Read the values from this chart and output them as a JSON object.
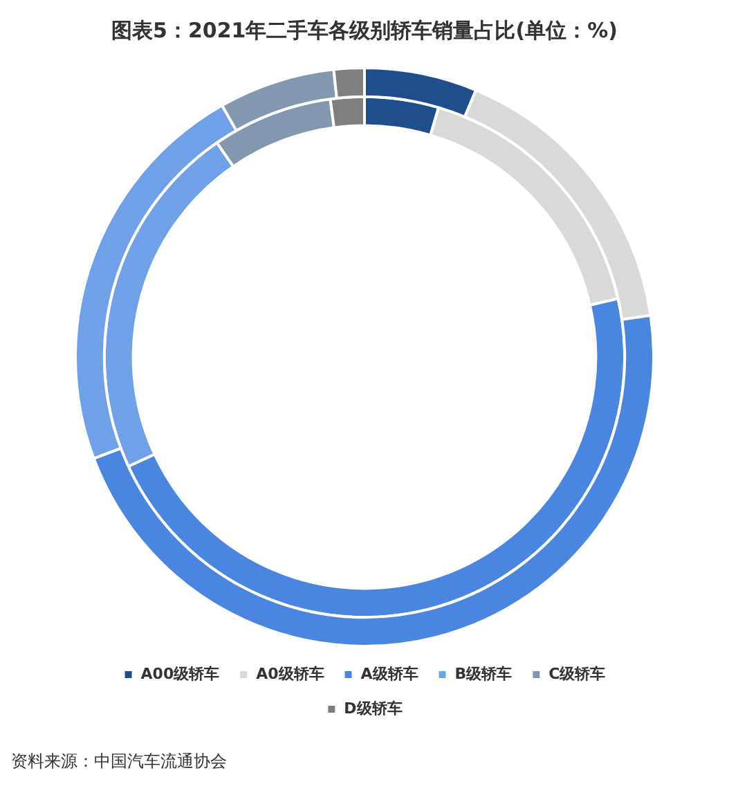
{
  "chart_data": {
    "type": "donut",
    "title": "图表5：2021年二手车各级别轿车销量占比(单位：%)",
    "categories": [
      "A00级轿车",
      "A0级轿车",
      "A级轿车",
      "B级轿车",
      "C级轿车",
      "D级轿车"
    ],
    "colors": [
      "#1f4e8c",
      "#d9d9d9",
      "#4a86e0",
      "#6fa0e8",
      "#8497b0",
      "#7f7f7f"
    ],
    "series": [
      {
        "values": [
          6.3,
          16.4,
          46.6,
          22.5,
          6.5,
          1.7
        ]
      },
      {
        "values": [
          4.6,
          16.8,
          46.7,
          22.3,
          7.5,
          2.1
        ]
      }
    ],
    "legend": "bottom",
    "annotations": [
      "资料来源：中国汽车流通协会"
    ]
  }
}
